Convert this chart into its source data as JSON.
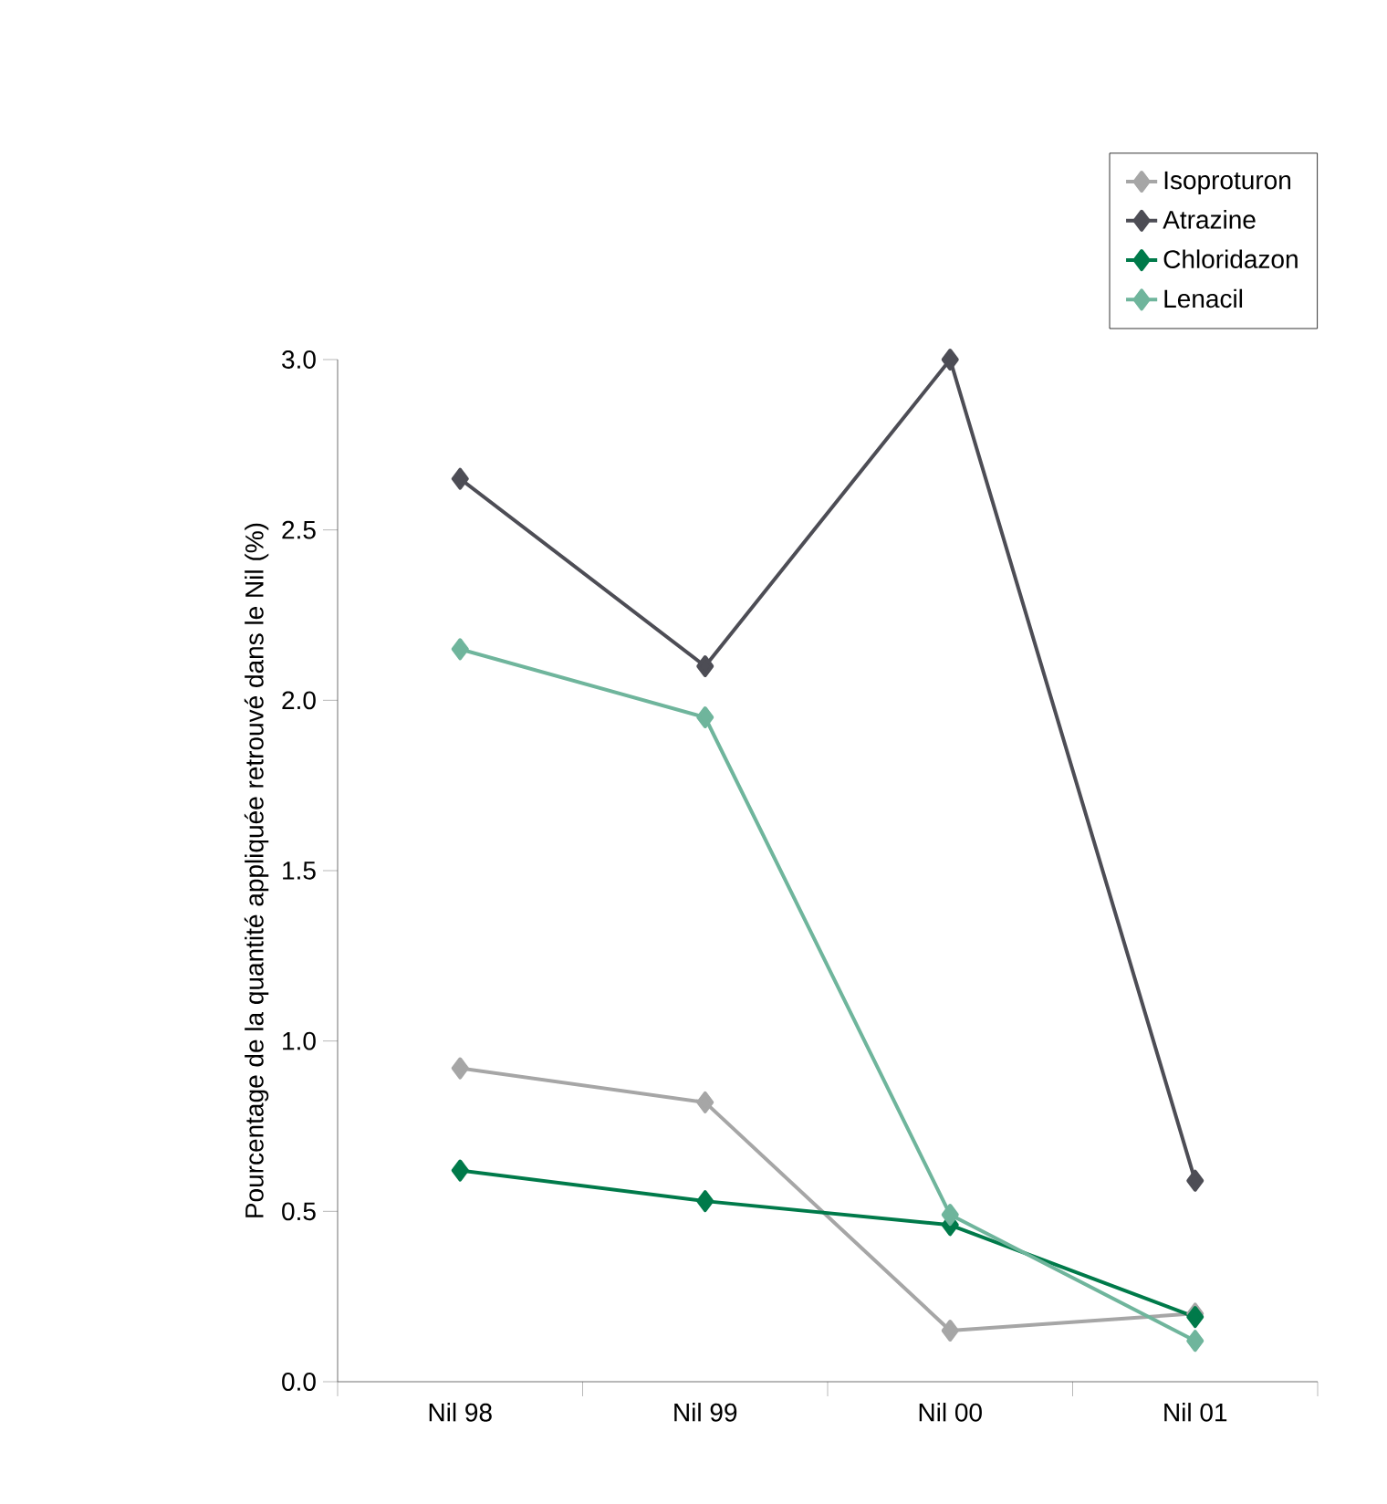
{
  "chart_data": {
    "type": "line",
    "ylabel": "Pourcentage de la quantité appliquée retrouvé dans le Nil (%)",
    "categories": [
      "Nil 98",
      "Nil 99",
      "Nil 00",
      "Nil 01"
    ],
    "series": [
      {
        "name": "Isoproturon",
        "color": "#a6a6a6",
        "values": [
          0.92,
          0.82,
          0.15,
          0.2
        ]
      },
      {
        "name": "Atrazine",
        "color": "#4d4d55",
        "values": [
          2.65,
          2.1,
          3.0,
          0.59
        ]
      },
      {
        "name": "Chloridazon",
        "color": "#007a4a",
        "values": [
          0.62,
          0.53,
          0.46,
          0.19
        ]
      },
      {
        "name": "Lenacil",
        "color": "#6fb59c",
        "values": [
          2.15,
          1.95,
          0.49,
          0.12
        ]
      }
    ],
    "ylim": [
      0,
      3.0
    ],
    "yticks": [
      {
        "value": 0,
        "label": "0.0"
      },
      {
        "value": 0.5,
        "label": "0.5"
      },
      {
        "value": 1,
        "label": "1.0"
      },
      {
        "value": 1.5,
        "label": "1.5"
      },
      {
        "value": 2,
        "label": "2.0"
      },
      {
        "value": 2.5,
        "label": "2.5"
      },
      {
        "value": 3,
        "label": "3.0"
      }
    ],
    "grid": false,
    "legend": "top right",
    "marker": "diamond",
    "line_style": "solid"
  }
}
